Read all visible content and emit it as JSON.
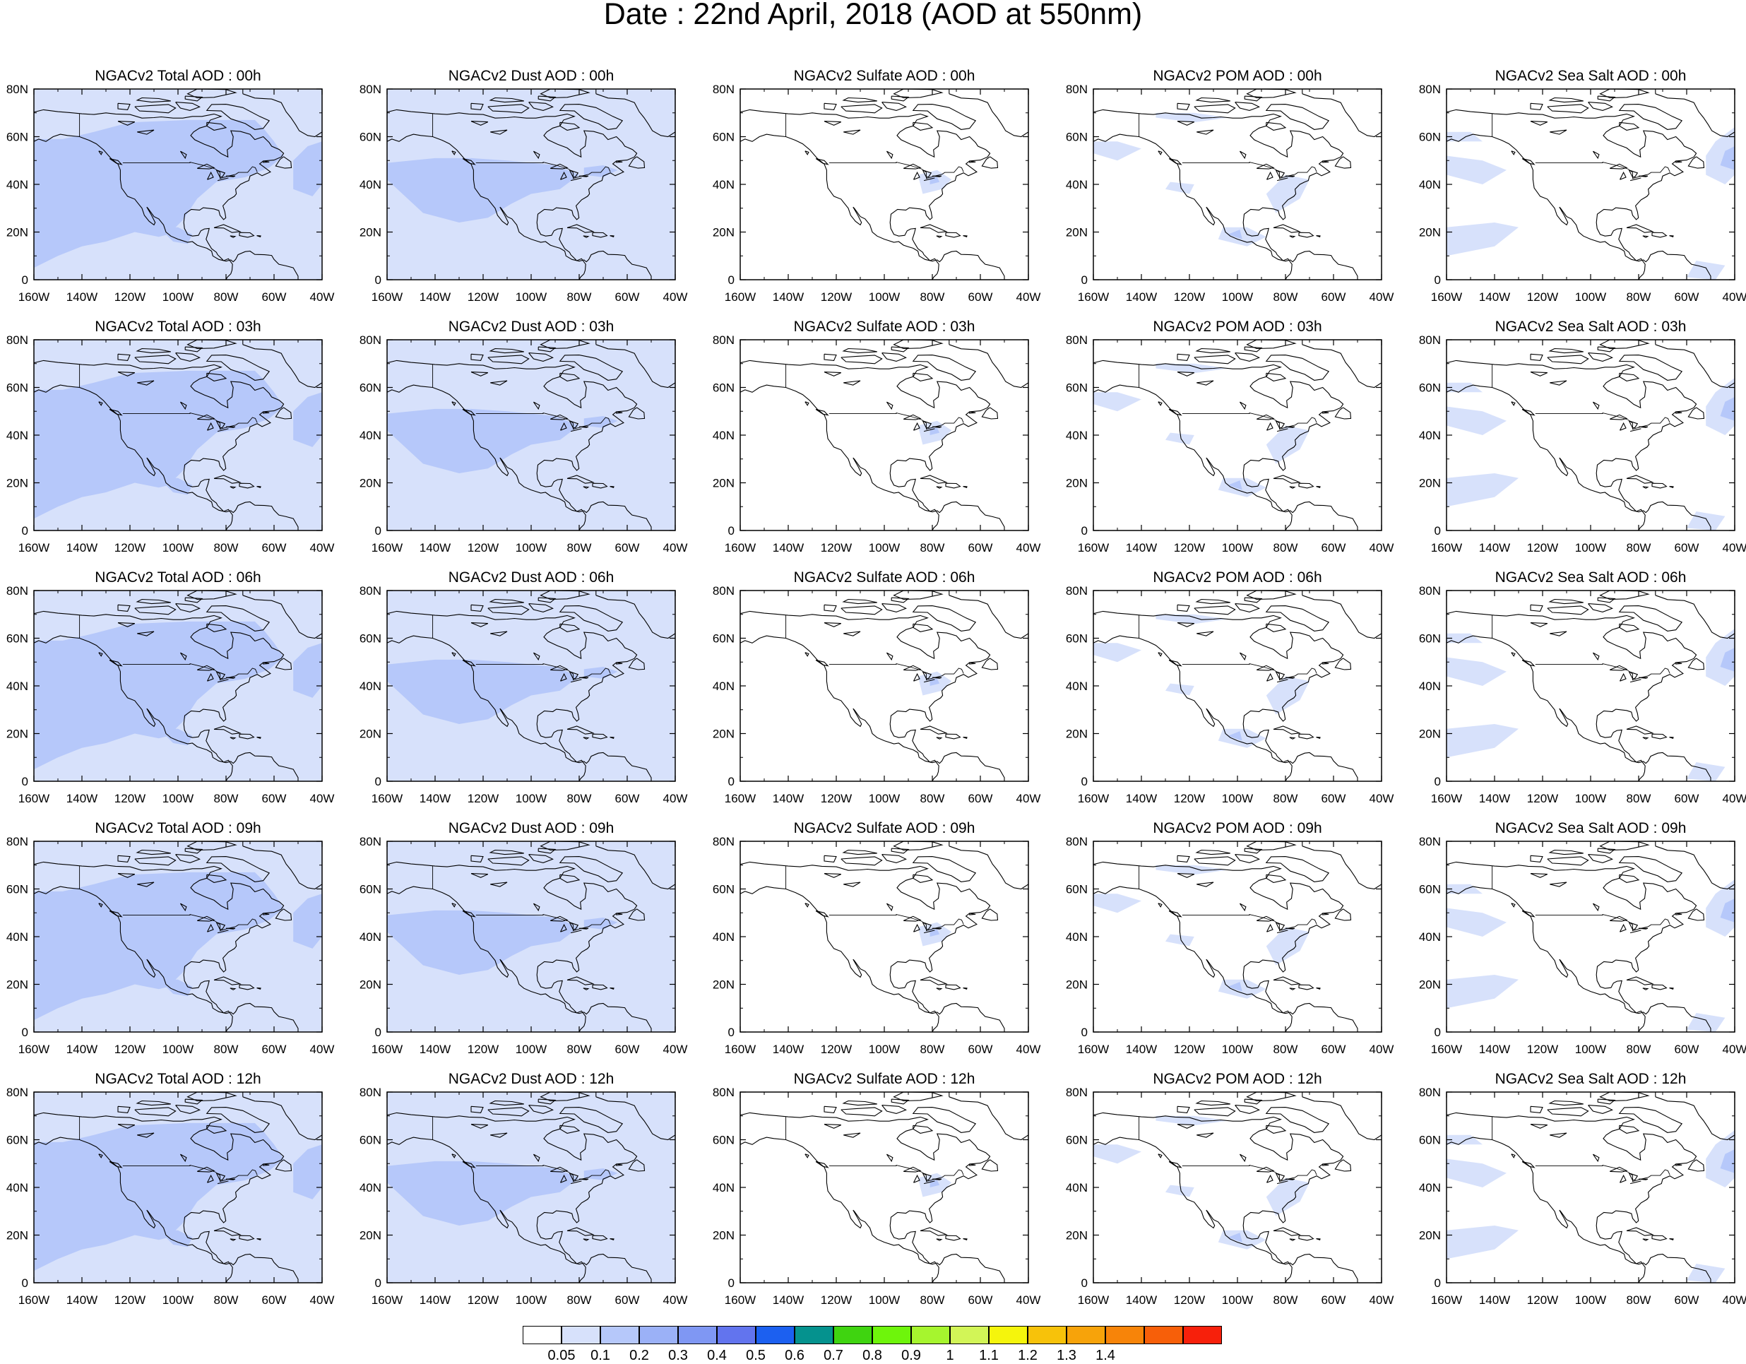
{
  "title": "Date : 22nd April, 2018 (AOD at 550nm)",
  "grid": {
    "columns": [
      "Total",
      "Dust",
      "Sulfate",
      "POM",
      "Sea Salt"
    ],
    "rows": [
      "00h",
      "03h",
      "06h",
      "09h",
      "12h"
    ]
  },
  "panels": [
    [
      "NGACv2 Total AOD : 00h",
      "NGACv2 Dust AOD : 00h",
      "NGACv2 Sulfate AOD : 00h",
      "NGACv2 POM AOD : 00h",
      "NGACv2 Sea Salt AOD : 00h"
    ],
    [
      "NGACv2 Total AOD : 03h",
      "NGACv2 Dust AOD : 03h",
      "NGACv2 Sulfate AOD : 03h",
      "NGACv2 POM AOD : 03h",
      "NGACv2 Sea Salt AOD : 03h"
    ],
    [
      "NGACv2 Total AOD : 06h",
      "NGACv2 Dust AOD : 06h",
      "NGACv2 Sulfate AOD : 06h",
      "NGACv2 POM AOD : 06h",
      "NGACv2 Sea Salt AOD : 06h"
    ],
    [
      "NGACv2 Total AOD : 09h",
      "NGACv2 Dust AOD : 09h",
      "NGACv2 Sulfate AOD : 09h",
      "NGACv2 POM AOD : 09h",
      "NGACv2 Sea Salt  AOD : 09h"
    ],
    [
      "NGACv2 Total AOD  : 12h",
      "NGACv2 Dust AOD : 12h",
      "NGACv2 Sulfate AOD : 12h",
      "NGACv2 POM  AOD : 12h",
      "NGACv2 Sea Salt  AOD : 12h"
    ]
  ],
  "axes": {
    "x_ticks": [
      "160W",
      "140W",
      "120W",
      "100W",
      "80W",
      "60W",
      "40W"
    ],
    "y_ticks": [
      "80N",
      "60N",
      "40N",
      "20N",
      "0"
    ]
  },
  "colorbar": {
    "colors": [
      "#ffffff",
      "#d7e1fb",
      "#b6c8fa",
      "#9bb1f7",
      "#7f97f3",
      "#6274ee",
      "#1c60f0",
      "#05928e",
      "#3fd410",
      "#6ef50b",
      "#a6f52e",
      "#d2f557",
      "#f5f50c",
      "#f7c20a",
      "#f7a30a",
      "#f78409",
      "#f75f09",
      "#f7200b"
    ],
    "labels": [
      "0.05",
      "0.1",
      "0.2",
      "0.3",
      "0.4",
      "0.5",
      "0.6",
      "0.7",
      "0.8",
      "0.9",
      "1",
      "1.1",
      "1.2",
      "1.3",
      "1.4"
    ]
  },
  "coastline_color": "#000000"
}
